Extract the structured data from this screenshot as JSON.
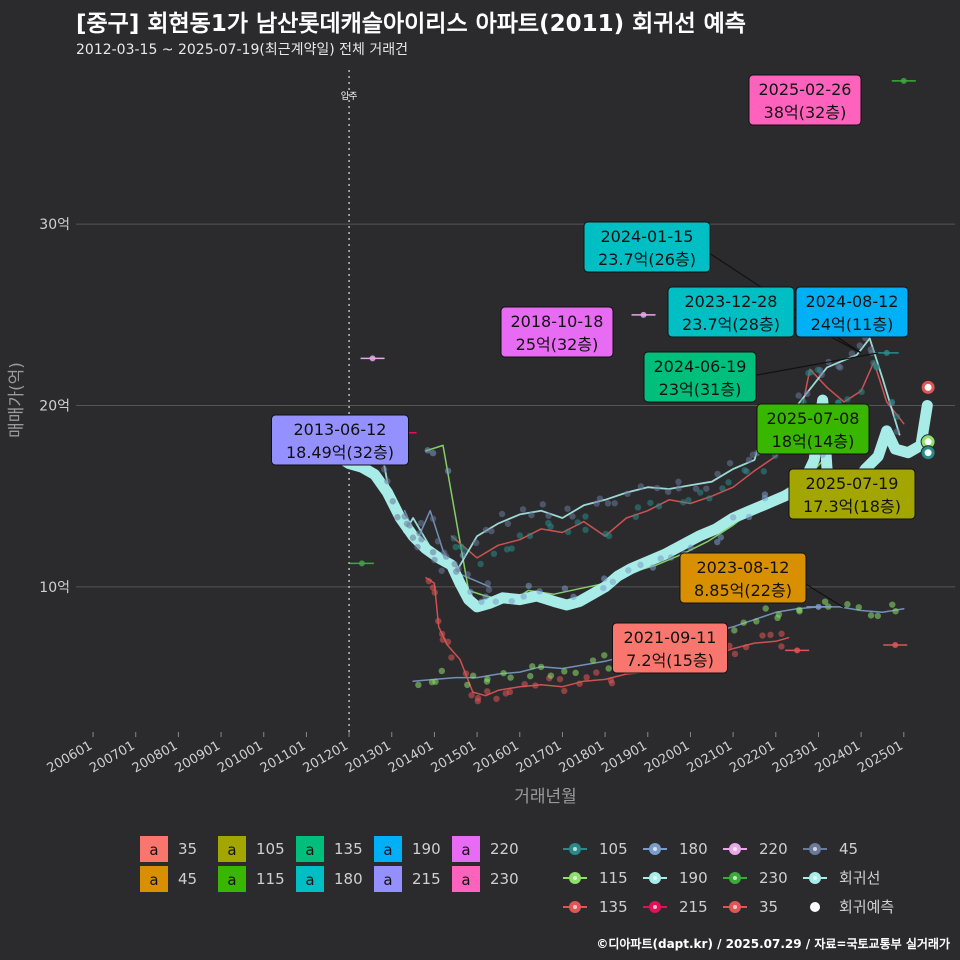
{
  "title": "[중구] 회현동1가 남산롯데캐슬아이리스 아파트(2011) 회귀선 예측",
  "subtitle": "2012-03-15 ~ 2025-07-19(최근계약일) 전체 거래건",
  "credit": "©디아파트(dapt.kr) / 2025.07.29 / 자료=국토교통부 실거래가",
  "colors": {
    "background": "#2b2b2e",
    "grid": "#555555",
    "regression": "#a8ece8",
    "text_muted": "#9a9a9a"
  },
  "chart_data": {
    "type": "scatter",
    "xlabel": "거래년월",
    "ylabel": "매매가(억)",
    "x_tick_labels": [
      "200601",
      "200701",
      "200801",
      "200901",
      "201001",
      "201101",
      "201201",
      "201301",
      "201401",
      "201501",
      "201601",
      "201701",
      "201801",
      "201901",
      "202001",
      "202101",
      "202201",
      "202301",
      "202401",
      "202501"
    ],
    "xlim": [
      2005.6,
      2026.2
    ],
    "y_ticks": [
      10,
      20,
      30
    ],
    "y_tick_labels": [
      "10억",
      "20억",
      "30억"
    ],
    "ylim": [
      2,
      38.5
    ],
    "move_in": {
      "label": "입주",
      "x": 2012.0
    },
    "legend_fill": [
      {
        "name": "35",
        "color": "#f8766d"
      },
      {
        "name": "45",
        "color": "#d89000"
      },
      {
        "name": "105",
        "color": "#a3a500"
      },
      {
        "name": "115",
        "color": "#39b600"
      },
      {
        "name": "135",
        "color": "#00bf7d"
      },
      {
        "name": "180",
        "color": "#00bfc4"
      },
      {
        "name": "190",
        "color": "#00b0f6"
      },
      {
        "name": "215",
        "color": "#9590ff"
      },
      {
        "name": "220",
        "color": "#e76bf3"
      },
      {
        "name": "230",
        "color": "#ff62bc"
      }
    ],
    "legend_fill_glyph": "a",
    "legend_line": [
      {
        "name": "105",
        "color": "#2a8a8a",
        "kind": "dot"
      },
      {
        "name": "115",
        "color": "#8ee06a",
        "kind": "dot"
      },
      {
        "name": "135",
        "color": "#e05555",
        "kind": "dot"
      },
      {
        "name": "180",
        "color": "#7a9cc8",
        "kind": "dot"
      },
      {
        "name": "190",
        "color": "#a8ece8",
        "kind": "dot"
      },
      {
        "name": "215",
        "color": "#e0105a",
        "kind": "dot"
      },
      {
        "name": "220",
        "color": "#e8a8e8",
        "kind": "dot"
      },
      {
        "name": "230",
        "color": "#3aaa3a",
        "kind": "dot"
      },
      {
        "name": "35",
        "color": "#e05555",
        "kind": "dot"
      },
      {
        "name": "45",
        "color": "#6a7a9a",
        "kind": "dot"
      },
      {
        "name": "회귀선",
        "color": "#a8ece8",
        "kind": "dot"
      },
      {
        "name": "회귀예측",
        "color": "#ffffff",
        "kind": "white"
      }
    ],
    "annotations": [
      {
        "date": "2025-02-26",
        "text": "38억(32층)",
        "color": "#ff62bc"
      },
      {
        "date": "2024-01-15",
        "text": "23.7억(26층)",
        "color": "#00bfc4"
      },
      {
        "date": "2023-12-28",
        "text": "23.7억(28층)",
        "color": "#00bfc4"
      },
      {
        "date": "2024-08-12",
        "text": "24억(11층)",
        "color": "#00b0f6"
      },
      {
        "date": "2018-10-18",
        "text": "25억(32층)",
        "color": "#e76bf3"
      },
      {
        "date": "2024-06-19",
        "text": "23억(31층)",
        "color": "#00bf7d"
      },
      {
        "date": "2013-06-12",
        "text": "18.49억(32층)",
        "color": "#9590ff"
      },
      {
        "date": "2025-07-08",
        "text": "18억(14층)",
        "color": "#39b600"
      },
      {
        "date": "2025-07-19",
        "text": "17.3억(18층)",
        "color": "#a3a500"
      },
      {
        "date": "2023-08-12",
        "text": "8.85억(22층)",
        "color": "#d89000"
      },
      {
        "date": "2021-09-11",
        "text": "7.2억(15층)",
        "color": "#f8766d"
      }
    ],
    "series": [
      {
        "name": "회귀선",
        "color": "#a8ece8",
        "width": 11,
        "points": [
          [
            2011.8,
            17.1
          ],
          [
            2012.0,
            16.8
          ],
          [
            2012.3,
            16.6
          ],
          [
            2012.6,
            16.2
          ],
          [
            2012.9,
            15.2
          ],
          [
            2013.2,
            13.8
          ],
          [
            2013.5,
            12.8
          ],
          [
            2013.8,
            12.1
          ],
          [
            2014.1,
            11.6
          ],
          [
            2014.4,
            11.2
          ],
          [
            2014.6,
            10.2
          ],
          [
            2014.8,
            9.3
          ],
          [
            2015.0,
            8.9
          ],
          [
            2015.3,
            9.1
          ],
          [
            2015.6,
            9.4
          ],
          [
            2016.0,
            9.3
          ],
          [
            2016.4,
            9.5
          ],
          [
            2016.8,
            9.2
          ],
          [
            2017.1,
            9.0
          ],
          [
            2017.4,
            9.2
          ],
          [
            2017.7,
            9.6
          ],
          [
            2018.0,
            10.0
          ],
          [
            2018.3,
            10.6
          ],
          [
            2018.6,
            11.0
          ],
          [
            2019.0,
            11.4
          ],
          [
            2019.4,
            11.8
          ],
          [
            2019.8,
            12.3
          ],
          [
            2020.2,
            12.8
          ],
          [
            2020.6,
            13.2
          ],
          [
            2021.0,
            13.8
          ],
          [
            2021.4,
            14.2
          ],
          [
            2021.8,
            14.6
          ],
          [
            2022.2,
            15.0
          ],
          [
            2022.6,
            15.5
          ],
          [
            2022.9,
            17.0
          ],
          [
            2023.0,
            18.8
          ],
          [
            2023.1,
            20.3
          ],
          [
            2023.2,
            16.5
          ],
          [
            2023.5,
            14.8
          ],
          [
            2023.8,
            15.5
          ],
          [
            2024.1,
            16.5
          ],
          [
            2024.4,
            17.2
          ],
          [
            2024.6,
            18.6
          ],
          [
            2024.8,
            17.6
          ],
          [
            2025.1,
            17.4
          ],
          [
            2025.4,
            17.8
          ],
          [
            2025.55,
            20.0
          ]
        ]
      },
      {
        "name": "180",
        "color": "#a8ece8",
        "width": 1.8,
        "points": [
          [
            2012.8,
            17.0
          ],
          [
            2013.0,
            14.5
          ],
          [
            2013.3,
            13.0
          ],
          [
            2013.5,
            13.8
          ],
          [
            2013.8,
            12.6
          ],
          [
            2014.1,
            11.4
          ],
          [
            2014.5,
            10.8
          ],
          [
            2015.0,
            12.8
          ],
          [
            2015.5,
            13.5
          ],
          [
            2016.0,
            14.0
          ],
          [
            2016.5,
            14.2
          ],
          [
            2017.0,
            13.8
          ],
          [
            2017.5,
            14.5
          ],
          [
            2018.0,
            14.8
          ],
          [
            2018.5,
            15.2
          ],
          [
            2019.0,
            15.5
          ],
          [
            2019.5,
            15.4
          ],
          [
            2020.0,
            15.6
          ],
          [
            2020.5,
            15.8
          ],
          [
            2021.0,
            16.5
          ],
          [
            2021.5,
            17.0
          ],
          [
            2021.7,
            18.6
          ],
          [
            2022.0,
            17.8
          ],
          [
            2022.5,
            20.0
          ],
          [
            2022.9,
            21.2
          ],
          [
            2023.2,
            22.1
          ],
          [
            2023.5,
            22.4
          ],
          [
            2023.9,
            22.8
          ],
          [
            2024.2,
            23.7
          ],
          [
            2024.5,
            21.5
          ],
          [
            2024.9,
            18.4
          ]
        ]
      },
      {
        "name": "135",
        "color": "#e05555",
        "width": 1.5,
        "points": [
          [
            2014.4,
            12.8
          ],
          [
            2014.6,
            12.4
          ],
          [
            2015.0,
            11.6
          ],
          [
            2015.5,
            12.3
          ],
          [
            2016.0,
            12.6
          ],
          [
            2016.5,
            13.2
          ],
          [
            2017.0,
            13.0
          ],
          [
            2017.5,
            13.6
          ],
          [
            2018.0,
            12.8
          ],
          [
            2018.5,
            13.8
          ],
          [
            2019.0,
            14.2
          ],
          [
            2019.5,
            14.8
          ],
          [
            2020.0,
            14.6
          ],
          [
            2020.5,
            15.0
          ],
          [
            2021.0,
            15.5
          ],
          [
            2021.5,
            16.4
          ],
          [
            2022.0,
            17.2
          ],
          [
            2022.5,
            18.5
          ],
          [
            2022.8,
            22.0
          ],
          [
            2023.2,
            21.0
          ],
          [
            2023.6,
            20.2
          ],
          [
            2024.0,
            20.8
          ],
          [
            2024.3,
            22.4
          ],
          [
            2024.6,
            20.2
          ],
          [
            2025.0,
            19.0
          ]
        ]
      },
      {
        "name": "35",
        "color": "#e05555",
        "width": 1.5,
        "points": [
          [
            2013.8,
            10.5
          ],
          [
            2014.0,
            10.2
          ],
          [
            2014.1,
            7.8
          ],
          [
            2014.3,
            6.8
          ],
          [
            2014.6,
            6.0
          ],
          [
            2014.9,
            4.2
          ],
          [
            2015.2,
            4.0
          ],
          [
            2015.5,
            4.3
          ],
          [
            2016.0,
            4.5
          ],
          [
            2016.5,
            4.6
          ],
          [
            2017.0,
            4.5
          ],
          [
            2017.5,
            4.8
          ],
          [
            2018.0,
            4.9
          ],
          [
            2018.5,
            5.2
          ],
          [
            2019.0,
            5.3
          ],
          [
            2019.5,
            5.6
          ],
          [
            2020.0,
            5.9
          ],
          [
            2020.5,
            6.2
          ],
          [
            2021.0,
            6.6
          ],
          [
            2021.5,
            6.9
          ],
          [
            2022.0,
            7.0
          ],
          [
            2022.3,
            7.2
          ]
        ]
      },
      {
        "name": "45",
        "color": "#7a9cc8",
        "width": 1.5,
        "points": [
          [
            2013.5,
            4.8
          ],
          [
            2014.0,
            4.9
          ],
          [
            2014.5,
            5.0
          ],
          [
            2015.0,
            5.0
          ],
          [
            2015.5,
            5.2
          ],
          [
            2016.0,
            5.3
          ],
          [
            2016.5,
            5.6
          ],
          [
            2017.0,
            5.5
          ],
          [
            2017.5,
            5.7
          ],
          [
            2018.0,
            5.9
          ],
          [
            2018.5,
            6.2
          ],
          [
            2019.0,
            6.2
          ],
          [
            2019.5,
            6.6
          ],
          [
            2020.0,
            7.0
          ],
          [
            2020.5,
            7.5
          ],
          [
            2021.0,
            7.8
          ],
          [
            2021.5,
            8.2
          ],
          [
            2022.0,
            8.6
          ],
          [
            2022.5,
            8.8
          ],
          [
            2023.0,
            8.9
          ],
          [
            2023.5,
            8.9
          ],
          [
            2024.0,
            8.7
          ],
          [
            2024.5,
            8.6
          ],
          [
            2025.0,
            8.8
          ]
        ]
      },
      {
        "name": "115",
        "color": "#8ee06a",
        "width": 1.5,
        "points": [
          [
            2013.8,
            17.5
          ],
          [
            2014.2,
            17.8
          ],
          [
            2014.8,
            9.8
          ],
          [
            2015.2,
            9.5
          ],
          [
            2015.8,
            9.2
          ],
          [
            2016.2,
            9.8
          ],
          [
            2016.8,
            9.6
          ],
          [
            2017.4,
            9.9
          ],
          [
            2018.0,
            10.2
          ],
          [
            2018.6,
            10.8
          ],
          [
            2019.2,
            11.2
          ],
          [
            2019.8,
            11.8
          ],
          [
            2020.4,
            12.5
          ],
          [
            2021.0,
            13.4
          ],
          [
            2021.6,
            14.5
          ],
          [
            2022.2,
            15.3
          ],
          [
            2022.8,
            16.2
          ],
          [
            2023.2,
            17.2
          ]
        ]
      },
      {
        "name": "180-left",
        "color": "#7a9cc8",
        "width": 1.5,
        "points": [
          [
            2013.3,
            14.2
          ],
          [
            2013.6,
            12.6
          ],
          [
            2013.9,
            14.2
          ],
          [
            2014.2,
            12.0
          ],
          [
            2014.5,
            10.8
          ],
          [
            2014.9,
            10.4
          ],
          [
            2015.3,
            10.0
          ]
        ]
      }
    ]
  },
  "footer_note": ""
}
